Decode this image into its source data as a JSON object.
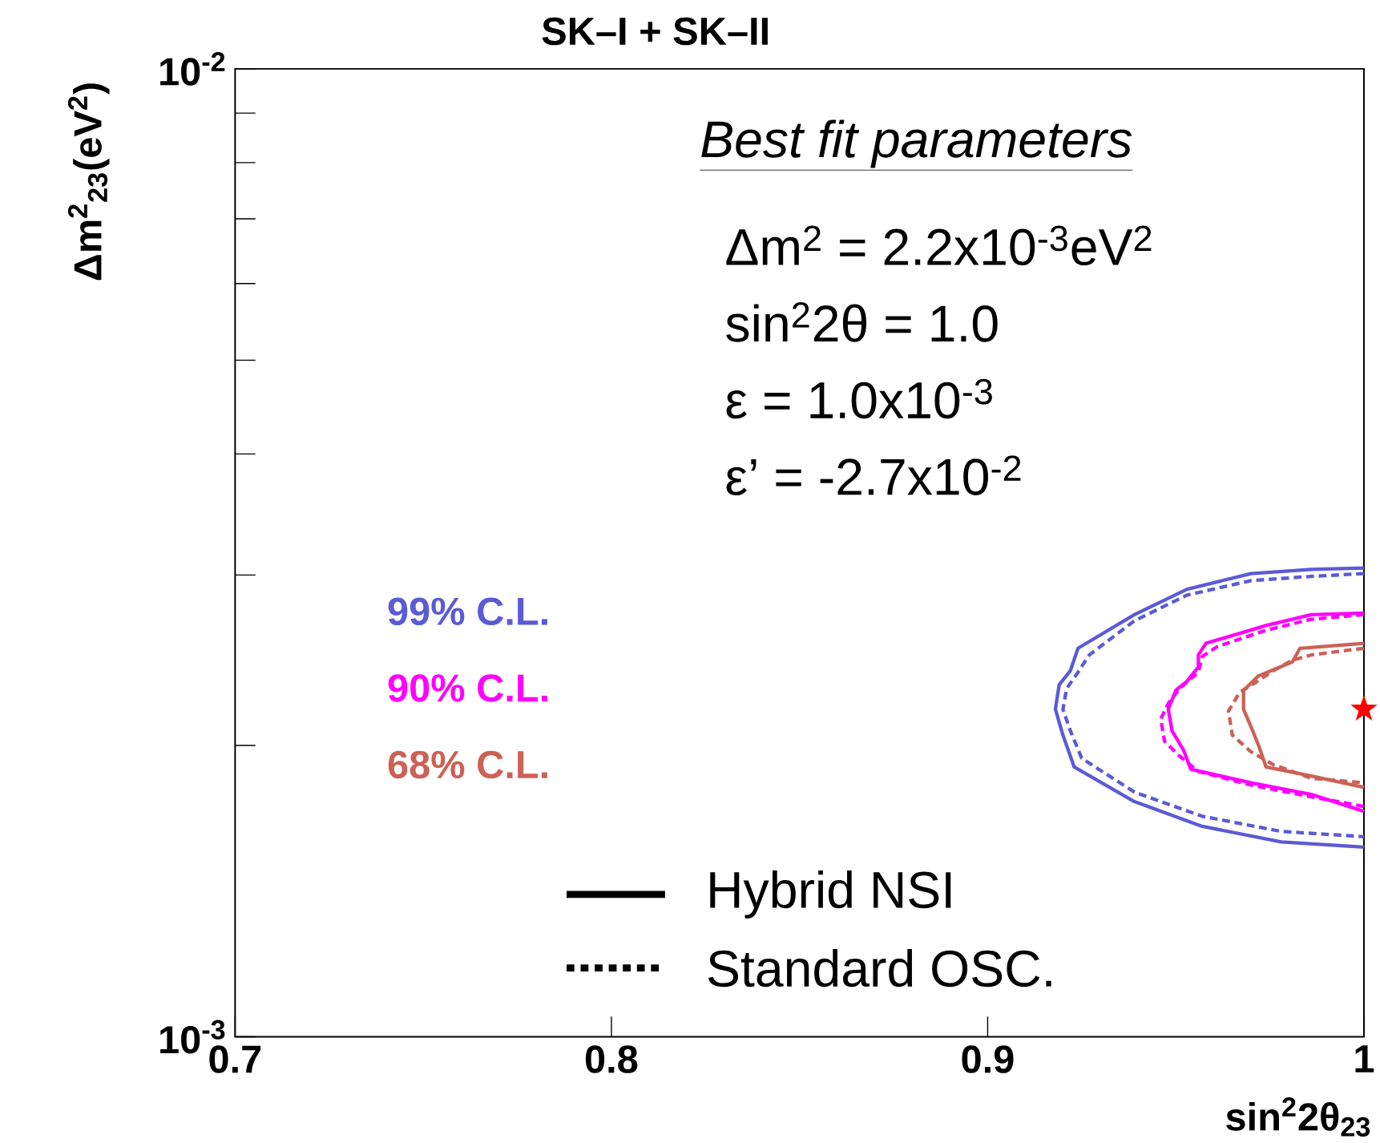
{
  "chart_data": {
    "type": "line",
    "title": "SK–I + SK–II",
    "xlabel": "sin$^{2}$2θ$_{23}$",
    "ylabel": "Δm$^{2}$$_{23}$(eV$^{2}$)",
    "log": "y",
    "xlim": [
      0.7,
      1.0
    ],
    "ylim": [
      0.001,
      0.01
    ],
    "xticks": [
      0.7,
      0.8,
      0.9,
      1
    ],
    "yticks": [
      {
        "value": 0.001,
        "label": "10$^{-3}$"
      },
      {
        "value": 0.002,
        "label": null
      },
      {
        "value": 0.003,
        "label": null
      },
      {
        "value": 0.004,
        "label": null
      },
      {
        "value": 0.005,
        "label": null
      },
      {
        "value": 0.006,
        "label": null
      },
      {
        "value": 0.007,
        "label": null
      },
      {
        "value": 0.008,
        "label": null
      },
      {
        "value": 0.009,
        "label": null
      },
      {
        "value": 0.01,
        "label": "10$^{-2}$"
      }
    ],
    "grid": false,
    "marker": "none",
    "annotations": [
      "Best fit parameters",
      "Δm$^{2}$ = 2.2x10$^{-3}$eV$^{2}$",
      "sin$^{2}$2θ = 1.0",
      "ε  =  1.0x10$^{-3}$",
      "ε’ = -2.7x10$^{-2}$",
      "Hybrid NSI",
      "Standard OSC."
    ],
    "series": [
      {
        "name": "99% C.L.",
        "color": "#5b5bd6",
        "line_style": "solid",
        "x": [
          1.0,
          0.986,
          0.97,
          0.953,
          0.939,
          0.924,
          0.922,
          0.919,
          0.918,
          0.92,
          0.923,
          0.939,
          0.957,
          0.978,
          1.0
        ],
        "values": [
          0.00305,
          0.00304,
          0.00301,
          0.0029,
          0.00273,
          0.00252,
          0.00239,
          0.00231,
          0.00218,
          0.00205,
          0.0019,
          0.00175,
          0.00165,
          0.00159,
          0.00157
        ]
      },
      {
        "color": "#5b5bd6",
        "line_style": "dashed",
        "x": [
          1.0,
          0.986,
          0.97,
          0.953,
          0.939,
          0.927,
          0.924,
          0.921,
          0.92,
          0.922,
          0.925,
          0.939,
          0.957,
          0.978,
          1.0
        ],
        "values": [
          0.00301,
          0.00299,
          0.00296,
          0.00286,
          0.00269,
          0.00248,
          0.00238,
          0.00229,
          0.00218,
          0.00207,
          0.00194,
          0.00179,
          0.00169,
          0.00163,
          0.00161
        ]
      },
      {
        "name": "90% C.L.",
        "color": "#ff00ff",
        "line_style": "solid",
        "x": [
          1.0,
          0.986,
          0.974,
          0.958,
          0.956,
          0.956,
          0.953,
          0.95,
          0.948,
          0.949,
          0.952,
          0.954,
          0.97,
          0.986,
          1.0
        ],
        "values": [
          0.00274,
          0.00273,
          0.00266,
          0.00255,
          0.00248,
          0.00241,
          0.00233,
          0.00228,
          0.00218,
          0.00207,
          0.00198,
          0.00189,
          0.00183,
          0.00178,
          0.00171
        ]
      },
      {
        "color": "#ff00ff",
        "line_style": "dashed",
        "x": [
          1.0,
          0.986,
          0.974,
          0.961,
          0.957,
          0.956,
          0.951,
          0.948,
          0.946,
          0.947,
          0.951,
          0.956,
          0.97,
          0.986,
          1.0
        ],
        "values": [
          0.00273,
          0.0027,
          0.00263,
          0.00253,
          0.00247,
          0.00238,
          0.00229,
          0.00221,
          0.00213,
          0.00202,
          0.00195,
          0.00188,
          0.00182,
          0.00177,
          0.00173
        ]
      },
      {
        "name": "68% C.L.",
        "color": "#cc6155",
        "line_style": "solid",
        "x": [
          1.0,
          0.983,
          0.981,
          0.972,
          0.968,
          0.968,
          0.97,
          0.972,
          0.974,
          0.986,
          1.0
        ],
        "values": [
          0.00255,
          0.00252,
          0.00244,
          0.00236,
          0.00228,
          0.00218,
          0.00209,
          0.002,
          0.0019,
          0.00186,
          0.00181
        ]
      },
      {
        "color": "#cc6155",
        "line_style": "dashed",
        "x": [
          1.0,
          0.986,
          0.981,
          0.976,
          0.971,
          0.967,
          0.964,
          0.965,
          0.97,
          0.976,
          0.986,
          1.0
        ],
        "values": [
          0.00252,
          0.00248,
          0.00245,
          0.00239,
          0.00232,
          0.00227,
          0.00217,
          0.00205,
          0.00197,
          0.00191,
          0.00185,
          0.00183
        ]
      },
      {
        "type": "scatter",
        "color": "#ff0000",
        "marker": "star",
        "x": [
          1.0
        ],
        "values": [
          0.00218
        ]
      }
    ]
  }
}
